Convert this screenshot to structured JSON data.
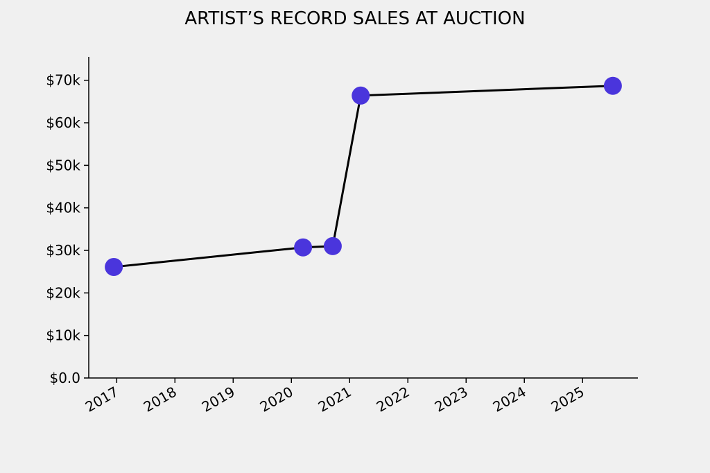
{
  "chart_data": {
    "type": "line",
    "title": "ARTIST’S RECORD SALES AT AUCTION",
    "x": [
      2016.95,
      2020.2,
      2020.71,
      2021.19,
      2025.52
    ],
    "series": [
      {
        "values": [
          26100,
          30700,
          31000,
          66400,
          68700
        ],
        "color": "#000000",
        "marker_color": "#4a35dc"
      }
    ],
    "xlim": [
      2016.52,
      2025.95
    ],
    "xticks": [
      2017,
      2018,
      2019,
      2020,
      2021,
      2022,
      2023,
      2024,
      2025
    ],
    "ylim": [
      0,
      75500
    ],
    "yticks": [
      {
        "value": 0,
        "label": "$0.0"
      },
      {
        "value": 10000,
        "label": "$10k"
      },
      {
        "value": 20000,
        "label": "$20k"
      },
      {
        "value": 30000,
        "label": "$30k"
      },
      {
        "value": 40000,
        "label": "$40k"
      },
      {
        "value": 50000,
        "label": "$50k"
      },
      {
        "value": 60000,
        "label": "$60k"
      },
      {
        "value": 70000,
        "label": "$70k"
      }
    ],
    "grid": false
  }
}
